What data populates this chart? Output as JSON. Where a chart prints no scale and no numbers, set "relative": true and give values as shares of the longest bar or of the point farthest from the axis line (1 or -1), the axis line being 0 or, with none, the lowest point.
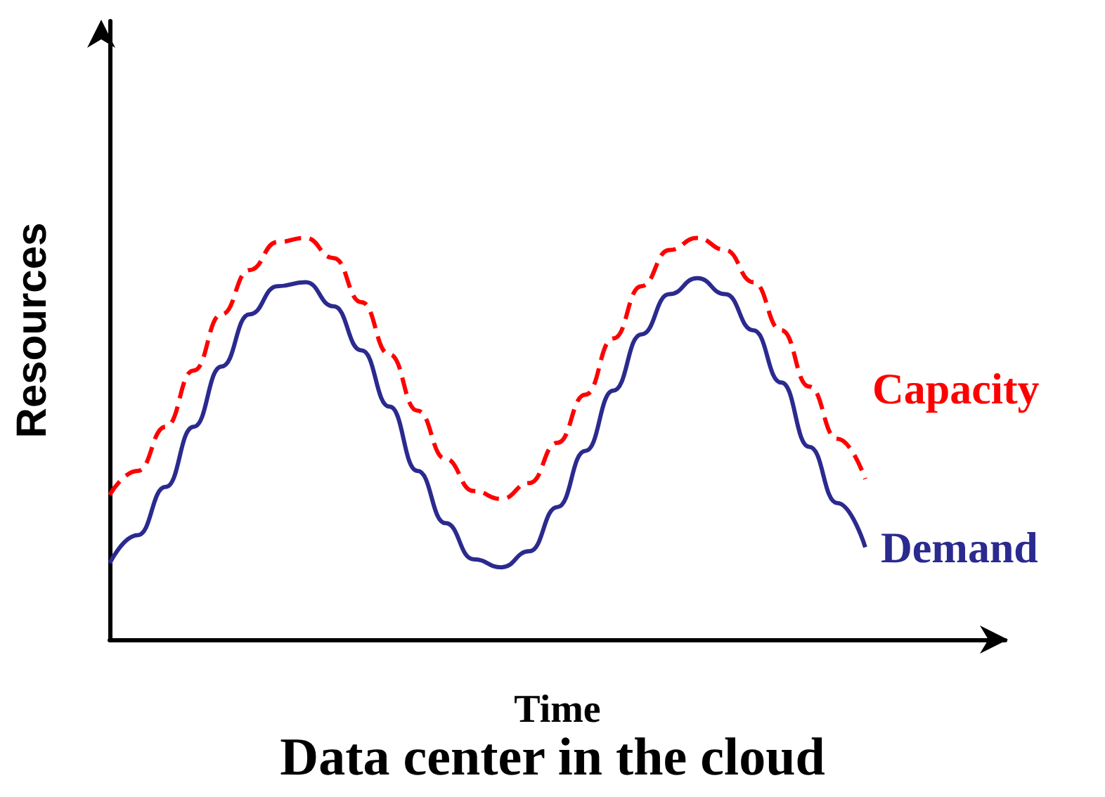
{
  "chart_data": {
    "type": "line",
    "title": "Data center in the cloud",
    "xlabel": "Time",
    "ylabel": "Resources",
    "relative": true,
    "legend": false,
    "grid": false,
    "marker": "none",
    "categories": [
      null,
      null,
      null,
      null,
      null,
      null,
      null,
      null,
      null,
      null,
      null,
      null,
      null,
      null,
      null,
      null,
      null,
      null,
      null,
      null,
      null,
      null,
      null,
      null,
      null,
      null,
      null,
      null,
      null,
      null,
      null,
      null,
      null
    ],
    "series": [
      {
        "name": "Capacity",
        "color": "#ff0000",
        "line_style": "dashed",
        "values": [
          0.36,
          0.42,
          0.53,
          0.67,
          0.81,
          0.92,
          0.99,
          1.0,
          0.95,
          0.84,
          0.71,
          0.57,
          0.45,
          0.37,
          0.35,
          0.39,
          0.49,
          0.61,
          0.75,
          0.88,
          0.97,
          1.0,
          0.97,
          0.89,
          0.77,
          0.63,
          0.5,
          0.4,
          null,
          null,
          null,
          null,
          null
        ]
      },
      {
        "name": "Demand",
        "color": "#2b2a8f",
        "line_style": "solid",
        "values": [
          0.19,
          0.26,
          0.38,
          0.53,
          0.68,
          0.81,
          0.88,
          0.89,
          0.83,
          0.72,
          0.58,
          0.42,
          0.29,
          0.2,
          0.18,
          0.22,
          0.33,
          0.47,
          0.62,
          0.76,
          0.86,
          0.9,
          0.86,
          0.77,
          0.64,
          0.48,
          0.34,
          0.23,
          null,
          null,
          null,
          null,
          null
        ]
      }
    ]
  }
}
